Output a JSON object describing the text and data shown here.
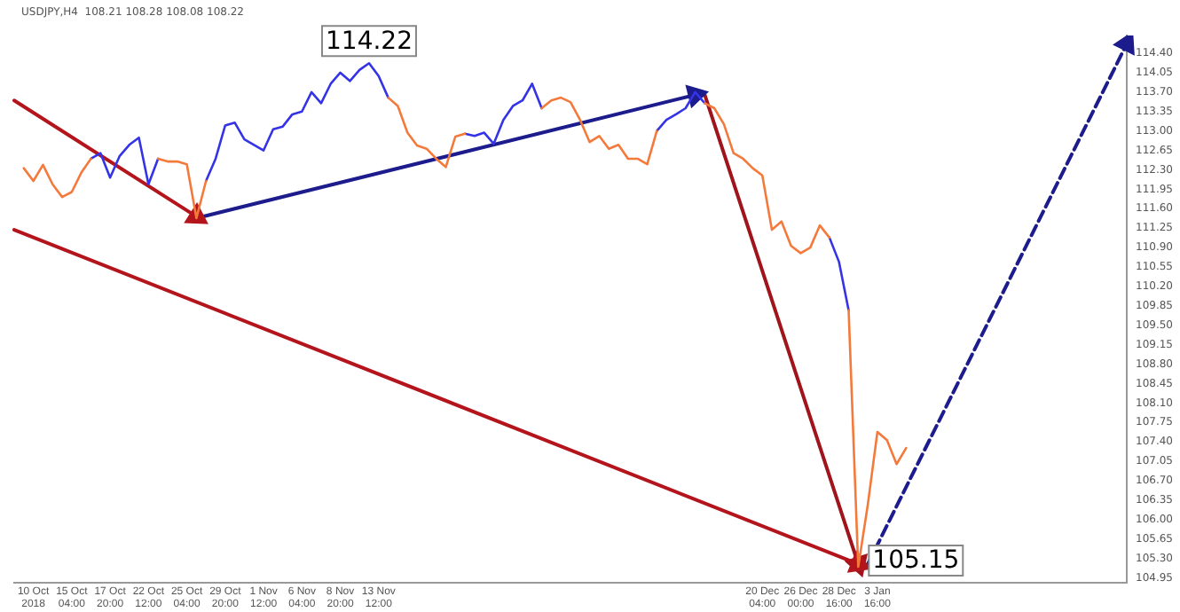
{
  "chart_data": {
    "type": "line",
    "title": "USDJPY,H4  108.21 108.28 108.08 108.22",
    "categories": [
      null,
      null,
      "10 Oct 2018",
      null,
      null,
      null,
      "15 Oct 04:00",
      null,
      null,
      null,
      "17 Oct 20:00",
      null,
      null,
      null,
      "22 Oct 12:00",
      null,
      null,
      null,
      "25 Oct 04:00",
      null,
      null,
      null,
      "29 Oct 20:00",
      null,
      null,
      null,
      "1 Nov 12:00",
      null,
      null,
      null,
      "6 Nov 04:00",
      null,
      null,
      null,
      "8 Nov 20:00",
      null,
      null,
      null,
      "13 Nov 12:00",
      null,
      null,
      null,
      null,
      null,
      null,
      null,
      null,
      null,
      null,
      null,
      null,
      null,
      null,
      null,
      null,
      null,
      null,
      null,
      null,
      null,
      null,
      null,
      null,
      null,
      null,
      null,
      null,
      null,
      null,
      null,
      null,
      null,
      null,
      null,
      null,
      null,
      null,
      null,
      "20 Dec 04:00",
      null,
      null,
      null,
      "26 Dec 00:00",
      null,
      null,
      null,
      "28 Dec 16:00",
      null,
      null,
      null,
      "3 Jan 16:00",
      null,
      null,
      null,
      null,
      null,
      null,
      null,
      null,
      null,
      null,
      null,
      null,
      null,
      null,
      null,
      null,
      null,
      null,
      null,
      null,
      null,
      null,
      null,
      null,
      null,
      null
    ],
    "ylim": [
      104.86,
      114.72
    ],
    "yticks": [
      {
        "value": 114.4,
        "label": "114.40"
      },
      {
        "value": 114.05,
        "label": "114.05"
      },
      {
        "value": 113.7,
        "label": "113.70"
      },
      {
        "value": 113.35,
        "label": "113.35"
      },
      {
        "value": 113,
        "label": "113.00"
      },
      {
        "value": 112.65,
        "label": "112.65"
      },
      {
        "value": 112.3,
        "label": "112.30"
      },
      {
        "value": 111.95,
        "label": "111.95"
      },
      {
        "value": 111.6,
        "label": "111.60"
      },
      {
        "value": 111.25,
        "label": "111.25"
      },
      {
        "value": 110.9,
        "label": "110.90"
      },
      {
        "value": 110.55,
        "label": "110.55"
      },
      {
        "value": 110.2,
        "label": "110.20"
      },
      {
        "value": 109.85,
        "label": "109.85"
      },
      {
        "value": 109.5,
        "label": "109.50"
      },
      {
        "value": 109.15,
        "label": "109.15"
      },
      {
        "value": 108.8,
        "label": "108.80"
      },
      {
        "value": 108.45,
        "label": "108.45"
      },
      {
        "value": 108.1,
        "label": "108.10"
      },
      {
        "value": 107.75,
        "label": "107.75"
      },
      {
        "value": 107.4,
        "label": "107.40"
      },
      {
        "value": 107.05,
        "label": "107.05"
      },
      {
        "value": 106.7,
        "label": "106.70"
      },
      {
        "value": 106.35,
        "label": "106.35"
      },
      {
        "value": 106,
        "label": "106.00"
      },
      {
        "value": 105.65,
        "label": "105.65"
      },
      {
        "value": 105.3,
        "label": "105.30"
      },
      {
        "value": 104.95,
        "label": "104.95"
      }
    ],
    "grid": false,
    "legend": false,
    "series": [
      {
        "color": "#f47a3c",
        "values": [
          null,
          112.33,
          112.1,
          112.39,
          112.04,
          111.81,
          111.9,
          112.25,
          112.5,
          null,
          null,
          null,
          null,
          null,
          null,
          112.5,
          112.45,
          112.45,
          112.4,
          111.43,
          112.1,
          null,
          null,
          null,
          null,
          null,
          null,
          null,
          null,
          null,
          null,
          null,
          null,
          null,
          null,
          null,
          null,
          null,
          null,
          113.6,
          113.45,
          112.97,
          112.74,
          112.68,
          112.5,
          112.35,
          112.9,
          112.95,
          null,
          null,
          null,
          null,
          null,
          null,
          null,
          113.41,
          113.55,
          113.6,
          113.52,
          113.2,
          112.8,
          112.91,
          112.68,
          112.75,
          112.5,
          112.5,
          112.4,
          113,
          null,
          null,
          null,
          null,
          113.5,
          113.41,
          113.12,
          112.6,
          112.5,
          112.33,
          112.2,
          111.22,
          111.37,
          110.93,
          110.8,
          110.9,
          111.3,
          111.08,
          null,
          109.77,
          105.15,
          106.27,
          107.58,
          107.43,
          107,
          107.29,
          null,
          null,
          null,
          null,
          null,
          null,
          null,
          null,
          null,
          null,
          null,
          null,
          null,
          null,
          null,
          null,
          null,
          null,
          null,
          null,
          null,
          null,
          null
        ]
      },
      {
        "color": "#3434e6",
        "values": [
          null,
          null,
          null,
          null,
          null,
          null,
          null,
          null,
          112.5,
          112.6,
          112.16,
          112.55,
          112.75,
          112.88,
          112.04,
          112.5,
          null,
          null,
          null,
          null,
          112.1,
          112.5,
          113.1,
          113.15,
          112.85,
          112.75,
          112.65,
          113.03,
          113.08,
          113.3,
          113.35,
          113.7,
          113.5,
          113.85,
          114.05,
          113.9,
          114.1,
          114.22,
          113.99,
          113.6,
          null,
          null,
          null,
          null,
          null,
          null,
          null,
          112.95,
          112.91,
          112.97,
          112.77,
          113.2,
          113.45,
          113.55,
          113.85,
          113.41,
          null,
          null,
          null,
          null,
          null,
          null,
          null,
          null,
          null,
          null,
          null,
          113,
          113.2,
          113.3,
          113.41,
          113.7,
          113.5,
          null,
          null,
          null,
          null,
          null,
          null,
          null,
          null,
          null,
          null,
          null,
          null,
          111.08,
          110.64,
          109.77,
          null,
          null,
          null,
          null,
          null,
          null,
          null,
          null,
          null,
          null,
          null,
          null,
          null,
          null,
          null,
          null,
          null,
          null,
          null,
          null,
          null,
          null,
          null,
          null,
          null,
          null,
          null,
          null,
          null
        ]
      },
      {
        "color": "#b4141c",
        "marker": "triangle",
        "values": [
          113.55,
          null,
          null,
          null,
          null,
          null,
          null,
          null,
          null,
          null,
          null,
          null,
          null,
          null,
          null,
          null,
          null,
          null,
          null,
          111.46,
          null,
          null,
          null,
          null,
          null,
          null,
          null,
          null,
          null,
          null,
          null,
          null,
          null,
          null,
          null,
          null,
          null,
          null,
          null,
          null,
          null,
          null,
          null,
          null,
          null,
          null,
          null,
          null,
          null,
          null,
          null,
          null,
          null,
          null,
          null,
          null,
          null,
          null,
          null,
          null,
          null,
          null,
          null,
          null,
          null,
          null,
          null,
          null,
          null,
          null,
          null,
          null,
          null,
          null,
          null,
          null,
          null,
          null,
          null,
          null,
          null,
          null,
          null,
          null,
          null,
          null,
          null,
          null,
          null,
          null,
          null,
          null,
          null,
          null,
          null,
          null,
          null,
          null,
          null,
          null,
          null,
          null,
          null,
          null,
          null,
          null,
          null,
          null,
          null,
          null,
          null,
          null,
          null,
          null,
          null,
          null,
          null
        ]
      },
      {
        "color": "#b4141c",
        "marker": "triangle",
        "values": [
          111.22,
          null,
          null,
          null,
          null,
          null,
          null,
          null,
          null,
          null,
          null,
          null,
          null,
          null,
          null,
          null,
          null,
          null,
          null,
          null,
          null,
          null,
          null,
          null,
          null,
          null,
          null,
          null,
          null,
          null,
          null,
          null,
          null,
          null,
          null,
          null,
          null,
          null,
          null,
          null,
          null,
          null,
          null,
          null,
          null,
          null,
          null,
          null,
          null,
          null,
          null,
          null,
          null,
          null,
          null,
          null,
          null,
          null,
          null,
          null,
          null,
          null,
          null,
          null,
          null,
          null,
          null,
          null,
          null,
          null,
          null,
          null,
          null,
          null,
          null,
          null,
          null,
          null,
          null,
          null,
          null,
          null,
          null,
          null,
          null,
          null,
          null,
          null,
          105.2,
          null,
          null,
          null,
          null,
          null,
          null,
          null,
          null,
          null,
          null,
          null,
          null,
          null,
          null,
          null,
          null,
          null,
          null,
          null,
          null,
          null,
          null,
          null,
          null,
          null,
          null,
          null,
          null
        ]
      },
      {
        "color": "#1c1c8c",
        "marker": "triangle",
        "values": [
          null,
          null,
          null,
          null,
          null,
          null,
          null,
          null,
          null,
          null,
          null,
          null,
          null,
          null,
          null,
          null,
          null,
          null,
          null,
          111.43,
          null,
          null,
          null,
          null,
          null,
          null,
          null,
          null,
          null,
          null,
          null,
          null,
          null,
          null,
          null,
          null,
          null,
          null,
          null,
          null,
          null,
          null,
          null,
          null,
          null,
          null,
          null,
          null,
          null,
          null,
          null,
          null,
          null,
          null,
          null,
          null,
          null,
          null,
          null,
          null,
          null,
          null,
          null,
          null,
          null,
          null,
          null,
          null,
          null,
          null,
          null,
          113.65,
          null,
          null,
          null,
          null,
          null,
          null,
          null,
          null,
          null,
          null,
          null,
          null,
          null,
          null,
          null,
          null,
          null,
          null,
          null,
          null,
          null,
          null,
          null,
          null,
          null,
          null,
          null,
          null,
          null,
          null,
          null,
          null,
          null,
          null,
          null,
          null,
          null,
          null,
          null,
          null,
          null,
          null,
          null,
          null,
          null
        ]
      },
      {
        "color": "#a0141c",
        "marker": "triangle",
        "values": [
          null,
          null,
          null,
          null,
          null,
          null,
          null,
          null,
          null,
          null,
          null,
          null,
          null,
          null,
          null,
          null,
          null,
          null,
          null,
          null,
          null,
          null,
          null,
          null,
          null,
          null,
          null,
          null,
          null,
          null,
          null,
          null,
          null,
          null,
          null,
          null,
          null,
          null,
          null,
          null,
          null,
          null,
          null,
          null,
          null,
          null,
          null,
          null,
          null,
          null,
          null,
          null,
          null,
          null,
          null,
          null,
          null,
          null,
          null,
          null,
          null,
          null,
          null,
          null,
          null,
          null,
          null,
          null,
          null,
          null,
          null,
          null,
          113.65,
          null,
          null,
          null,
          null,
          null,
          null,
          null,
          null,
          null,
          null,
          null,
          null,
          null,
          null,
          null,
          105.2,
          null,
          null,
          null,
          null,
          null,
          null,
          null,
          null,
          null,
          null,
          null,
          null,
          null,
          null,
          null,
          null,
          null,
          null,
          null,
          null,
          null,
          null,
          null,
          null,
          null,
          null,
          null,
          null
        ]
      },
      {
        "color": "#1c1c8c",
        "marker": "triangle",
        "line_style": "dashed",
        "values": [
          null,
          null,
          null,
          null,
          null,
          null,
          null,
          null,
          null,
          null,
          null,
          null,
          null,
          null,
          null,
          null,
          null,
          null,
          null,
          null,
          null,
          null,
          null,
          null,
          null,
          null,
          null,
          null,
          null,
          null,
          null,
          null,
          null,
          null,
          null,
          null,
          null,
          null,
          null,
          null,
          null,
          null,
          null,
          null,
          null,
          null,
          null,
          null,
          null,
          null,
          null,
          null,
          null,
          null,
          null,
          null,
          null,
          null,
          null,
          null,
          null,
          null,
          null,
          null,
          null,
          null,
          null,
          null,
          null,
          null,
          null,
          null,
          null,
          null,
          null,
          null,
          null,
          null,
          null,
          null,
          null,
          null,
          null,
          null,
          null,
          null,
          null,
          null,
          null,
          105.2,
          null,
          null,
          null,
          null,
          null,
          null,
          null,
          null,
          null,
          null,
          null,
          null,
          null,
          null,
          null,
          null,
          null,
          null,
          null,
          null,
          null,
          null,
          null,
          null,
          null,
          null,
          114.57
        ]
      }
    ],
    "annotations": [
      {
        "text": "114.22",
        "y": 114.22
      },
      "105.15"
    ]
  }
}
